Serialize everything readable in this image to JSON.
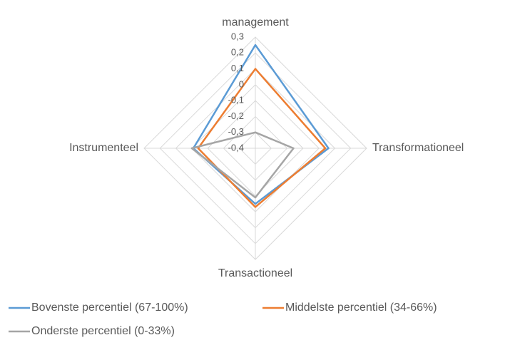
{
  "chart_data": {
    "type": "radar",
    "categories": [
      "management",
      "Transformationeel",
      "Transactioneel",
      "Instrumenteel"
    ],
    "series": [
      {
        "name": "Bovenste percentiel (67-100%)",
        "color": "#5b9bd5",
        "values": [
          0.25,
          0.06,
          -0.05,
          -0.01
        ]
      },
      {
        "name": "Middelste percentiel (34-66%)",
        "color": "#ed7d31",
        "values": [
          0.1,
          0.04,
          -0.03,
          -0.04
        ]
      },
      {
        "name": "Onderste percentiel (0-33%)",
        "color": "#a5a5a5",
        "values": [
          -0.3,
          -0.16,
          -0.09,
          0
        ]
      }
    ],
    "ylim": [
      -0.4,
      0.3
    ],
    "yticks": [
      {
        "value": 0.3,
        "label": "0,3"
      },
      {
        "value": 0.2,
        "label": "0,2"
      },
      {
        "value": 0.1,
        "label": "0,1"
      },
      {
        "value": 0,
        "label": "0"
      },
      {
        "value": -0.1,
        "label": "-0,1"
      },
      {
        "value": -0.2,
        "label": "-0,2"
      },
      {
        "value": -0.3,
        "label": "-0,3"
      },
      {
        "value": -0.4,
        "label": "-0,4"
      }
    ],
    "grid": true
  }
}
